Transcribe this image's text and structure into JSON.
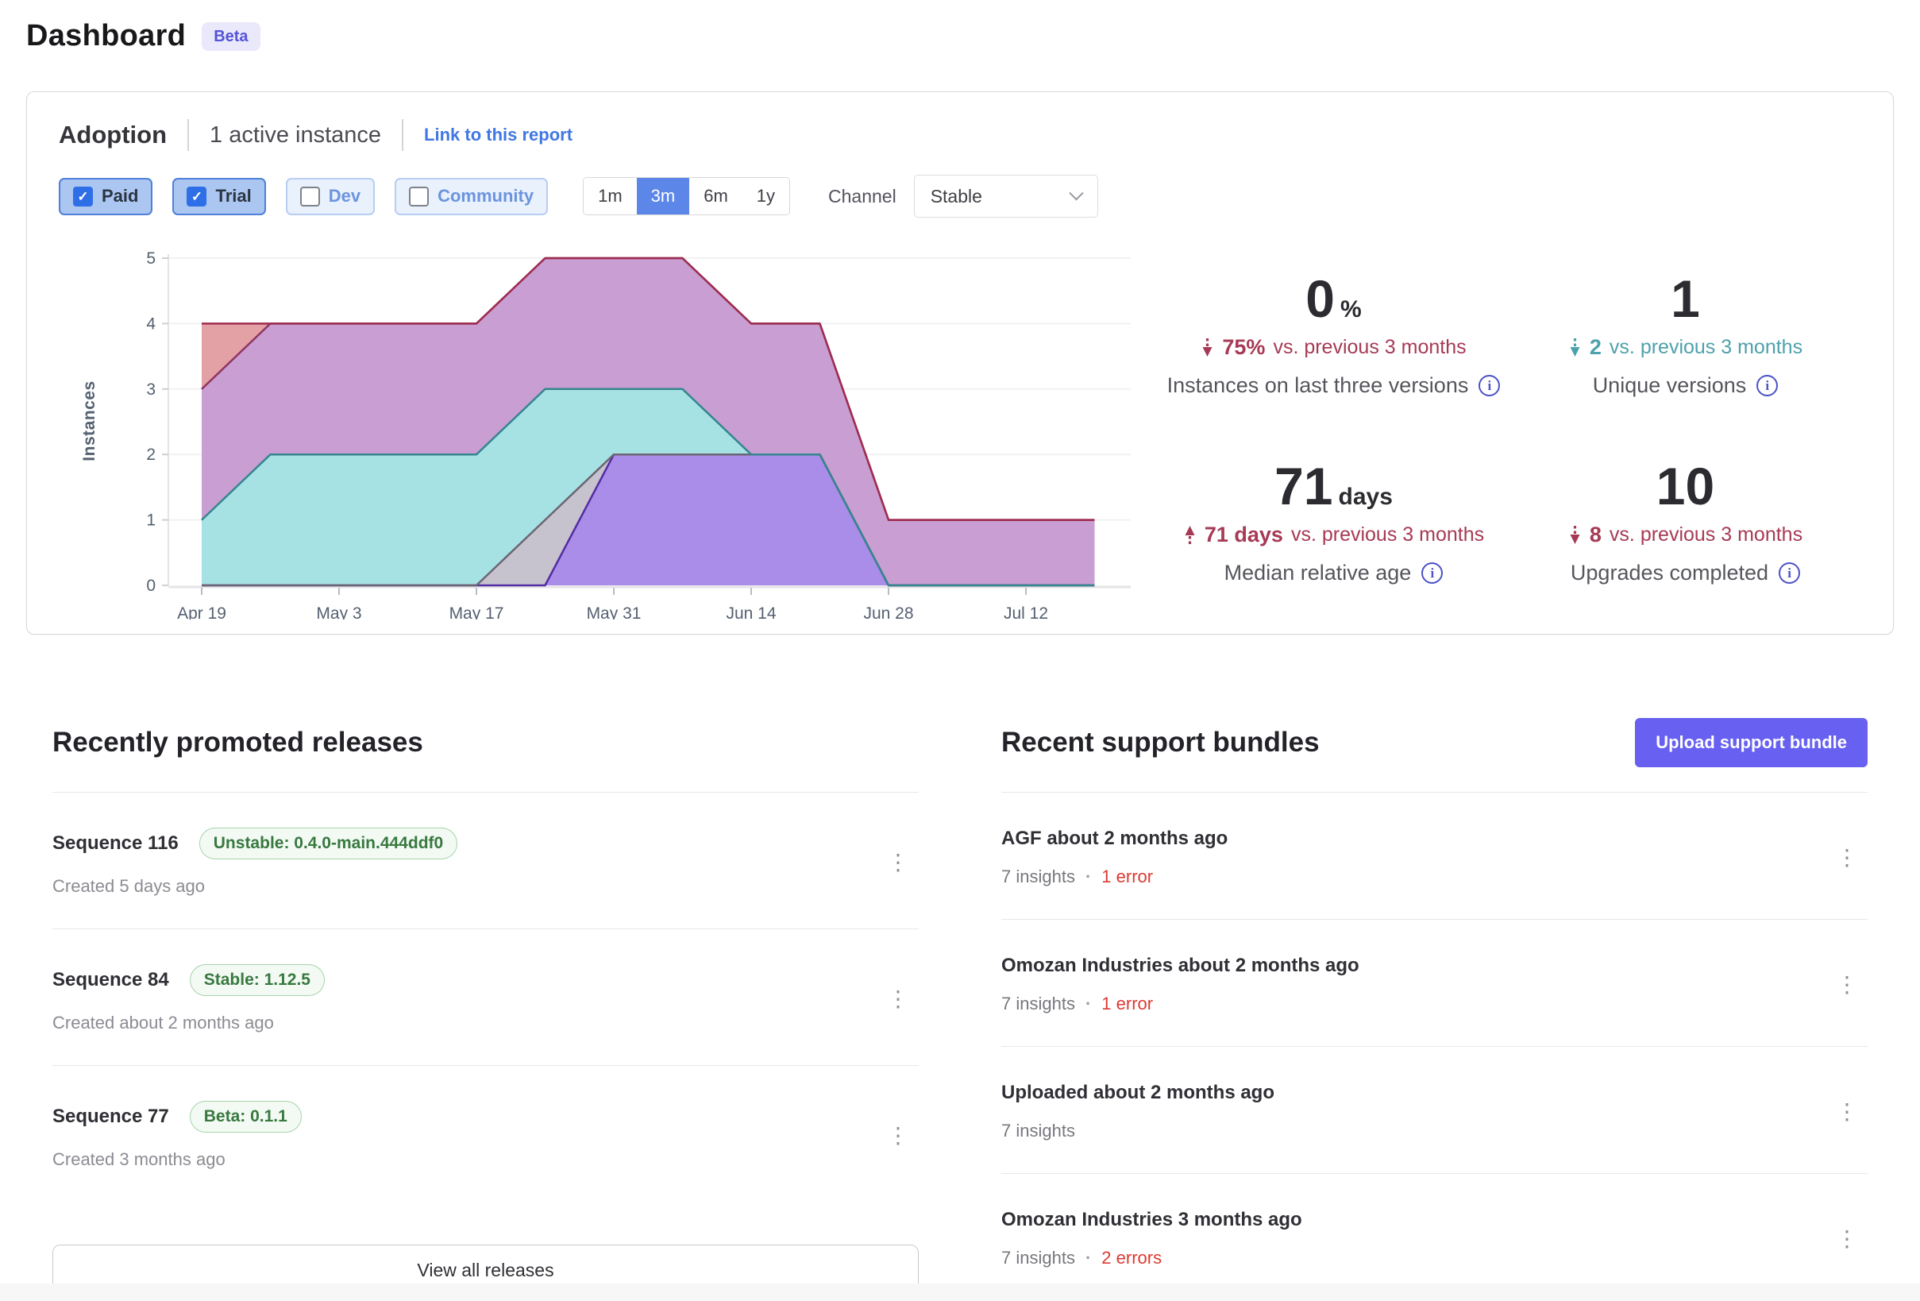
{
  "page": {
    "title": "Dashboard",
    "badge": "Beta"
  },
  "icons": {
    "check": "✓",
    "kebab": "⋮",
    "info": "i",
    "dot": "·"
  },
  "colors": {
    "accent_indigo": "#6760f0",
    "link_blue": "#4077e2",
    "selected_range_blue": "#5c87e8",
    "checked_pill_blue": "#abc6f1",
    "trend_negative": "#a63a55",
    "trend_positive": "#4da1ab",
    "error_red": "#dc3a33",
    "badge_green": "#38793f",
    "beta_badge_indigo": "#5553d8"
  },
  "adoption": {
    "title": "Adoption",
    "subtitle": "1 active instance",
    "link_label": "Link to this report",
    "filters": [
      {
        "label": "Paid",
        "checked": true
      },
      {
        "label": "Trial",
        "checked": true
      },
      {
        "label": "Dev",
        "checked": false
      },
      {
        "label": "Community",
        "checked": false
      }
    ],
    "ranges": [
      {
        "label": "1m",
        "selected": false
      },
      {
        "label": "3m",
        "selected": true
      },
      {
        "label": "6m",
        "selected": false
      },
      {
        "label": "1y",
        "selected": false
      }
    ],
    "channel_label": "Channel",
    "channel_value": "Stable",
    "stats": [
      {
        "value": "0",
        "unit": "%",
        "direction": "down",
        "trend": "negative",
        "delta": "75%",
        "delta_suffix": "vs. previous 3 months",
        "label": "Instances on last three versions"
      },
      {
        "value": "1",
        "unit": "",
        "direction": "down",
        "trend": "positive",
        "delta": "2",
        "delta_suffix": "vs. previous 3 months",
        "label": "Unique versions"
      },
      {
        "value": "71",
        "unit": "days",
        "direction": "up",
        "trend": "negative",
        "delta": "71 days",
        "delta_suffix": "vs. previous 3 months",
        "label": "Median relative age"
      },
      {
        "value": "10",
        "unit": "",
        "direction": "down",
        "trend": "negative",
        "delta": "8",
        "delta_suffix": "vs. previous 3 months",
        "label": "Upgrades completed"
      }
    ]
  },
  "chart_data": {
    "type": "area",
    "stacked": true,
    "title": "Adoption — instances by version over time",
    "xlabel": "",
    "ylabel": "Instances",
    "ylim": [
      0,
      5
    ],
    "y_ticks": [
      0,
      1,
      2,
      3,
      4,
      5
    ],
    "grid": true,
    "legend": false,
    "x": [
      "Apr 19",
      "Apr 26",
      "May 3",
      "May 10",
      "May 17",
      "May 24",
      "May 31",
      "Jun 7",
      "Jun 14",
      "Jun 21",
      "Jun 28",
      "Jul 5",
      "Jul 12",
      "Jul 19"
    ],
    "x_tick_labels": [
      "Apr 19",
      "May 3",
      "May 17",
      "May 31",
      "Jun 14",
      "Jun 28",
      "Jul 12"
    ],
    "x_tick_indices": [
      0,
      2,
      4,
      6,
      8,
      10,
      12
    ],
    "series": [
      {
        "name": "version-purple",
        "fill": "#aa8de8",
        "stroke": "#532da4",
        "values": [
          0,
          0,
          0,
          0,
          0,
          0,
          2,
          2,
          2,
          2,
          0,
          0,
          0,
          0
        ]
      },
      {
        "name": "version-gray",
        "fill": "#c7c3ce",
        "stroke": "#6b6573",
        "values": [
          0,
          0,
          0,
          0,
          0,
          1,
          0,
          0,
          0,
          0,
          0,
          0,
          0,
          0
        ]
      },
      {
        "name": "version-teal",
        "fill": "#a6e1e3",
        "stroke": "#35868f",
        "values": [
          1,
          2,
          2,
          2,
          2,
          2,
          1,
          1,
          0,
          0,
          0,
          0,
          0,
          0
        ]
      },
      {
        "name": "version-mauve",
        "fill": "#c99ed2",
        "stroke": "#8e3560",
        "values": [
          2,
          2,
          2,
          2,
          2,
          2,
          2,
          2,
          2,
          2,
          1,
          1,
          1,
          1
        ]
      },
      {
        "name": "version-red",
        "fill": "#e3a0a5",
        "stroke": "#9e2c4f",
        "values": [
          1,
          0,
          0,
          0,
          0,
          0,
          0,
          0,
          0,
          0,
          0,
          0,
          0,
          0
        ]
      }
    ]
  },
  "releases": {
    "heading": "Recently promoted releases",
    "view_all_label": "View all releases",
    "items": [
      {
        "title": "Sequence 116",
        "badge": "Unstable: 0.4.0-main.444ddf0",
        "created": "Created 5 days ago"
      },
      {
        "title": "Sequence 84",
        "badge": "Stable: 1.12.5",
        "created": "Created about 2 months ago"
      },
      {
        "title": "Sequence 77",
        "badge": "Beta: 0.1.1",
        "created": "Created 3 months ago"
      }
    ]
  },
  "support_bundles": {
    "heading": "Recent support bundles",
    "upload_label": "Upload support bundle",
    "items": [
      {
        "title": "AGF about 2 months ago",
        "insights": "7 insights",
        "errors": "1 error"
      },
      {
        "title": "Omozan Industries about 2 months ago",
        "insights": "7 insights",
        "errors": "1 error"
      },
      {
        "title": "Uploaded about 2 months ago",
        "insights": "7 insights",
        "errors": ""
      },
      {
        "title": "Omozan Industries 3 months ago",
        "insights": "7 insights",
        "errors": "2 errors"
      }
    ]
  }
}
